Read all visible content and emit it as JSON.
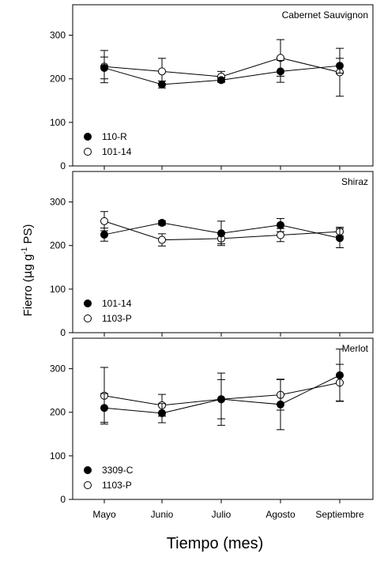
{
  "chart_data": {
    "type": "line",
    "x_categories": [
      "Mayo",
      "Junio",
      "Julio",
      "Agosto",
      "Septiembre"
    ],
    "xlabel": "Tiempo (mes)",
    "ylabel": {
      "prefix": "Fierro (",
      "mu": "µ",
      "unit": "g g",
      "sup": "-1",
      "suffix": " PS)"
    },
    "ylim": [
      0,
      370
    ],
    "yticks": [
      0,
      100,
      200,
      300
    ],
    "grid": false,
    "legend_placement": "bottom-left",
    "panels": [
      {
        "title": "Cabernet Sauvignon",
        "series": [
          {
            "name": "110-R",
            "marker": "filled",
            "values": [
              225,
              187,
              197,
              217,
              230
            ],
            "err": [
              25,
              8,
              5,
              25,
              17
            ]
          },
          {
            "name": "101-14",
            "marker": "open",
            "values": [
              228,
              217,
              205,
              248,
              215
            ],
            "err": [
              37,
              30,
              12,
              42,
              55
            ]
          }
        ]
      },
      {
        "title": "Shiraz",
        "series": [
          {
            "name": "101-14",
            "marker": "filled",
            "values": [
              225,
              252,
              228,
              247,
              217
            ],
            "err": [
              15,
              5,
              28,
              15,
              22
            ]
          },
          {
            "name": "1103-P",
            "marker": "open",
            "values": [
              256,
              213,
              216,
              224,
              232
            ],
            "err": [
              22,
              14,
              12,
              15,
              10
            ]
          }
        ]
      },
      {
        "title": "Merlot",
        "series": [
          {
            "name": "3309-C",
            "marker": "filled",
            "values": [
              210,
              198,
              230,
              218,
              285
            ],
            "err": [
              33,
              22,
              60,
              58,
              60
            ]
          },
          {
            "name": "1103-P",
            "marker": "open",
            "values": [
              238,
              216,
              230,
              240,
              268
            ],
            "err": [
              65,
              25,
              45,
              35,
              42
            ]
          }
        ]
      }
    ]
  }
}
